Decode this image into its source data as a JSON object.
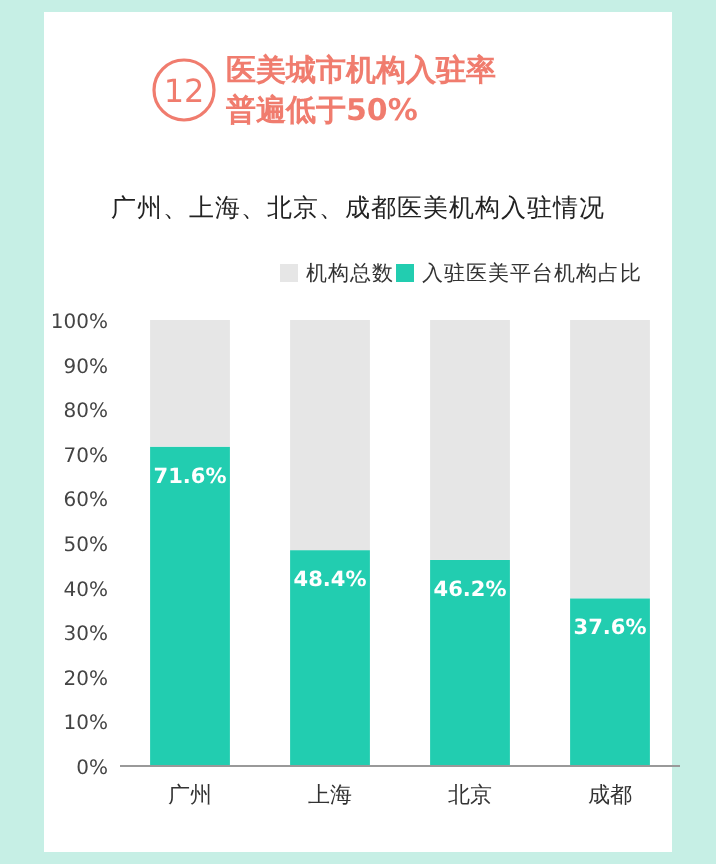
{
  "chart_data": {
    "type": "bar",
    "title": "医美城市机构入驻率普遍低于50%",
    "subtitle": "广州、上海、北京、成都医美机构入驻情况",
    "annotations": [
      "12"
    ],
    "categories": [
      "广州",
      "上海",
      "北京",
      "成都"
    ],
    "stacked": true,
    "series": [
      {
        "name": "入驻医美平台机构占比",
        "color": "#22cdb0",
        "values": [
          71.6,
          48.4,
          46.2,
          37.6
        ],
        "value_labels": [
          "71.6%",
          "48.4%",
          "46.2%",
          "37.6%"
        ]
      },
      {
        "name": "机构总数",
        "color": "#e6e6e6",
        "values": [
          28.4,
          51.6,
          53.8,
          62.4
        ]
      }
    ],
    "ylim": [
      0,
      100
    ],
    "yticks": [
      {
        "value": 0,
        "label": "0%"
      },
      {
        "value": 10,
        "label": "10%"
      },
      {
        "value": 20,
        "label": "20%"
      },
      {
        "value": 30,
        "label": "30%"
      },
      {
        "value": 40,
        "label": "40%"
      },
      {
        "value": 50,
        "label": "50%"
      },
      {
        "value": 60,
        "label": "60%"
      },
      {
        "value": 70,
        "label": "70%"
      },
      {
        "value": 80,
        "label": "80%"
      },
      {
        "value": 90,
        "label": "90%"
      },
      {
        "value": 100,
        "label": "100%"
      }
    ],
    "legend": "top right",
    "grid": false
  }
}
